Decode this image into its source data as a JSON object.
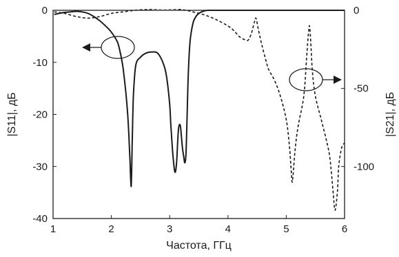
{
  "chart_data": {
    "type": "line",
    "xlabel": "Частота, ГГц",
    "ylabel_left": "|S11|, дБ",
    "ylabel_right": "|S21|, дБ",
    "xlim": [
      1,
      6
    ],
    "ylim_left": [
      -40,
      0
    ],
    "ylim_right": [
      -133.3,
      0
    ],
    "x_ticks": [
      "1",
      "2",
      "3",
      "4",
      "5",
      "6"
    ],
    "y_ticks_left": [
      "0",
      "-10",
      "-20",
      "-30",
      "-40"
    ],
    "y_ticks_right": [
      "0",
      "-50",
      "-100"
    ],
    "grid": false,
    "series": [
      {
        "axis": "left",
        "style": "solid",
        "color": "#1a1a1a",
        "x": [
          1.02,
          1.1,
          1.2,
          1.3,
          1.4,
          1.5,
          1.6,
          1.7,
          1.8,
          1.9,
          2.0,
          2.1,
          2.15,
          2.2,
          2.25,
          2.28,
          2.3,
          2.32,
          2.33,
          2.34,
          2.35,
          2.36,
          2.38,
          2.42,
          2.5,
          2.6,
          2.7,
          2.8,
          2.9,
          2.95,
          3.0,
          3.02,
          3.05,
          3.08,
          3.1,
          3.12,
          3.15,
          3.18,
          3.2,
          3.22,
          3.24,
          3.26,
          3.28,
          3.3,
          3.32,
          3.35,
          3.4,
          3.45,
          3.5,
          3.55,
          3.6,
          3.65,
          3.7,
          3.8,
          3.9,
          4.0,
          4.5,
          5.0,
          5.5,
          6.0
        ],
        "y": [
          -0.8,
          -0.6,
          -0.4,
          -0.3,
          -0.2,
          -0.3,
          -0.6,
          -1.2,
          -2.0,
          -3.0,
          -4.2,
          -6.0,
          -8.0,
          -11.0,
          -16.0,
          -20.0,
          -24.0,
          -29.0,
          -32.0,
          -33.8,
          -30.0,
          -24.0,
          -16.0,
          -10.5,
          -9.0,
          -8.2,
          -8.0,
          -8.3,
          -10.5,
          -13.0,
          -18.0,
          -22.0,
          -27.0,
          -30.5,
          -31.0,
          -29.0,
          -23.0,
          -22.0,
          -24.0,
          -26.5,
          -28.0,
          -29.3,
          -27.5,
          -20.0,
          -12.0,
          -6.0,
          -2.5,
          -1.2,
          -0.6,
          -0.3,
          -0.1,
          0.0,
          0.0,
          0.0,
          0.0,
          0.0,
          0.0,
          0.0,
          0.0,
          0.0
        ]
      },
      {
        "axis": "right",
        "style": "dashed",
        "color": "#1a1a1a",
        "x": [
          1.02,
          1.2,
          1.4,
          1.6,
          1.8,
          2.0,
          2.2,
          2.4,
          2.6,
          2.8,
          3.0,
          3.2,
          3.4,
          3.6,
          3.8,
          4.0,
          4.1,
          4.2,
          4.3,
          4.35,
          4.4,
          4.45,
          4.48,
          4.52,
          4.58,
          4.65,
          4.7,
          4.8,
          4.9,
          5.0,
          5.05,
          5.08,
          5.1,
          5.12,
          5.15,
          5.2,
          5.3,
          5.35,
          5.38,
          5.4,
          5.42,
          5.45,
          5.5,
          5.6,
          5.7,
          5.75,
          5.8,
          5.83,
          5.85,
          5.88,
          5.9,
          5.95,
          6.0
        ],
        "y": [
          -1.0,
          -2.0,
          -4.0,
          -5.0,
          -4.0,
          -2.0,
          -1.0,
          0.0,
          0.5,
          1.0,
          1.0,
          0.5,
          -1.0,
          -3.0,
          -6.0,
          -10.0,
          -13.0,
          -17.0,
          -19.0,
          -19.0,
          -15.0,
          -8.0,
          -5.0,
          -12.0,
          -22.0,
          -32.0,
          -38.0,
          -45.0,
          -55.0,
          -70.0,
          -85.0,
          -100.0,
          -110.0,
          -104.0,
          -90.0,
          -75.0,
          -55.0,
          -30.0,
          -15.0,
          -10.0,
          -20.0,
          -40.0,
          -55.0,
          -70.0,
          -85.0,
          -95.0,
          -115.0,
          -127.0,
          -126.0,
          -115.0,
          -100.0,
          -88.0,
          -85.0
        ]
      }
    ]
  }
}
